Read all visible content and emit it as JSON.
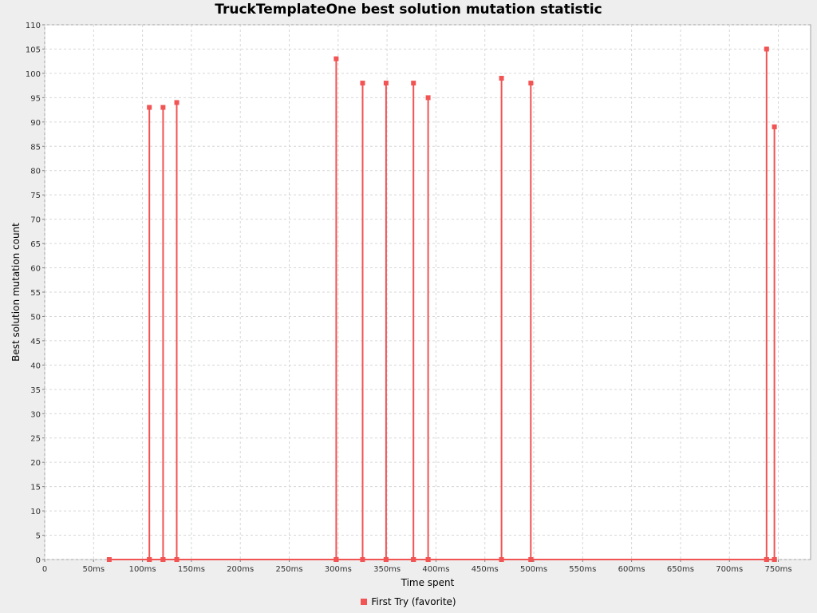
{
  "chart_data": {
    "type": "scatter",
    "title": "TruckTemplateOne best solution mutation statistic",
    "xlabel": "Time spent",
    "ylabel": "Best solution mutation count",
    "xlim": [
      0,
      783
    ],
    "ylim": [
      0,
      110
    ],
    "x_ticks": [
      0,
      50,
      100,
      150,
      200,
      250,
      300,
      350,
      400,
      450,
      500,
      550,
      600,
      650,
      700,
      750
    ],
    "x_tick_labels": [
      "0",
      "50ms",
      "100ms",
      "150ms",
      "200ms",
      "250ms",
      "300ms",
      "350ms",
      "400ms",
      "450ms",
      "500ms",
      "550ms",
      "600ms",
      "650ms",
      "700ms",
      "750ms"
    ],
    "y_ticks": [
      0,
      5,
      10,
      15,
      20,
      25,
      30,
      35,
      40,
      45,
      50,
      55,
      60,
      65,
      70,
      75,
      80,
      85,
      90,
      95,
      100,
      105,
      110
    ],
    "grid": true,
    "legend_position": "bottom",
    "series": [
      {
        "name": "First Try (favorite)",
        "color": "#f25353",
        "points": [
          {
            "x": 66,
            "y": 0
          },
          {
            "x": 107,
            "y": 0
          },
          {
            "x": 107,
            "y": 93
          },
          {
            "x": 107,
            "y": 0
          },
          {
            "x": 121,
            "y": 0
          },
          {
            "x": 121,
            "y": 93
          },
          {
            "x": 121,
            "y": 0
          },
          {
            "x": 135,
            "y": 0
          },
          {
            "x": 135,
            "y": 94
          },
          {
            "x": 135,
            "y": 0
          },
          {
            "x": 298,
            "y": 0
          },
          {
            "x": 298,
            "y": 103
          },
          {
            "x": 298,
            "y": 0
          },
          {
            "x": 325,
            "y": 0
          },
          {
            "x": 325,
            "y": 98
          },
          {
            "x": 325,
            "y": 0
          },
          {
            "x": 349,
            "y": 0
          },
          {
            "x": 349,
            "y": 98
          },
          {
            "x": 349,
            "y": 0
          },
          {
            "x": 377,
            "y": 0
          },
          {
            "x": 377,
            "y": 98
          },
          {
            "x": 377,
            "y": 0
          },
          {
            "x": 392,
            "y": 0
          },
          {
            "x": 392,
            "y": 95
          },
          {
            "x": 392,
            "y": 0
          },
          {
            "x": 467,
            "y": 0
          },
          {
            "x": 467,
            "y": 99
          },
          {
            "x": 467,
            "y": 0
          },
          {
            "x": 497,
            "y": 0
          },
          {
            "x": 497,
            "y": 98
          },
          {
            "x": 497,
            "y": 0
          },
          {
            "x": 738,
            "y": 0
          },
          {
            "x": 738,
            "y": 105
          },
          {
            "x": 738,
            "y": 0
          },
          {
            "x": 746,
            "y": 0
          },
          {
            "x": 746,
            "y": 89
          },
          {
            "x": 746,
            "y": 0
          }
        ]
      }
    ]
  }
}
